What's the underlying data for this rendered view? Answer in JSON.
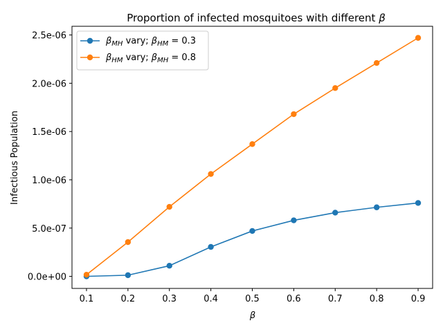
{
  "chart_data": {
    "type": "line",
    "title_prefix": "Proportion of infected mosquitoes with different",
    "title_symbol": "β",
    "xlabel": "β",
    "ylabel": "Infectious Population",
    "x": [
      0.1,
      0.2,
      0.3,
      0.4,
      0.5,
      0.6,
      0.7,
      0.8,
      0.9
    ],
    "x_ticks": [
      0.1,
      0.2,
      0.3,
      0.4,
      0.5,
      0.6,
      0.7,
      0.8,
      0.9
    ],
    "x_tick_labels": [
      "0.1",
      "0.2",
      "0.3",
      "0.4",
      "0.5",
      "0.6",
      "0.7",
      "0.8",
      "0.9"
    ],
    "y_ticks": [
      0,
      5e-07,
      1e-06,
      1.5e-06,
      2e-06,
      2.5e-06
    ],
    "y_tick_labels": [
      "0.0e+00",
      "5.0e-07",
      "1.0e-06",
      "1.5e-06",
      "2.0e-06",
      "2.5e-06"
    ],
    "xlim": [
      0.065,
      0.935
    ],
    "ylim": [
      -1.25e-07,
      2.59e-06
    ],
    "grid": false,
    "legend_position": "top-left",
    "series": [
      {
        "legend_sub": "MH",
        "legend_rest": " vary; ",
        "legend_sub2": "HM",
        "legend_value": " = 0.3",
        "color": "#1f77b4",
        "values": [
          0.0,
          1.2e-08,
          1.1e-07,
          3.05e-07,
          4.7e-07,
          5.8e-07,
          6.6e-07,
          7.15e-07,
          7.6e-07
        ]
      },
      {
        "legend_sub": "HM",
        "legend_rest": " vary; ",
        "legend_sub2": "MH",
        "legend_value": " = 0.8",
        "color": "#ff7f0e",
        "values": [
          1.7e-08,
          3.55e-07,
          7.2e-07,
          1.06e-06,
          1.37e-06,
          1.68e-06,
          1.95e-06,
          2.21e-06,
          2.47e-06
        ]
      }
    ]
  }
}
